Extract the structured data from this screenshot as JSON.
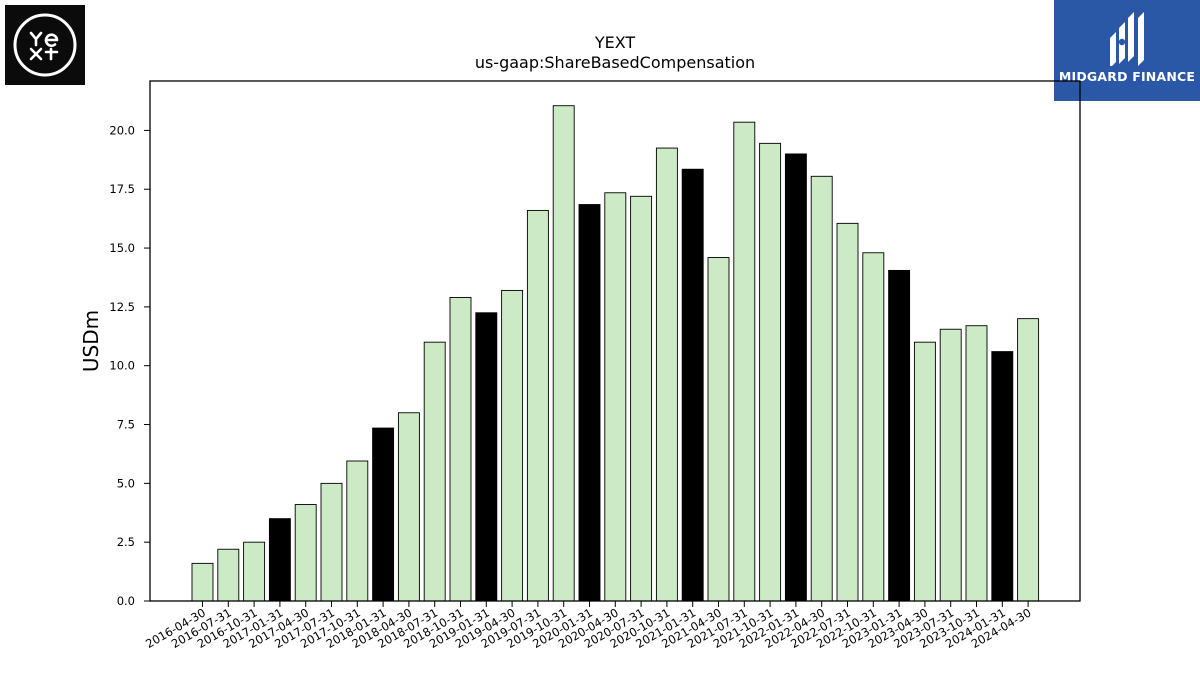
{
  "logos": {
    "left_icon": "yext-logo",
    "right_icon": "midgard-finance-logo",
    "right_text": "MIDGARD FINANCE"
  },
  "colors": {
    "bar_default": "#cdeac6",
    "bar_highlight": "#000000",
    "bar_edge": "#000000",
    "brand_blue": "#2b57a7"
  },
  "chart_data": {
    "type": "bar",
    "title": "YEXT",
    "subtitle": "us-gaap:ShareBasedCompensation",
    "xlabel": "",
    "ylabel": "USDm",
    "ylim": [
      0,
      22.1
    ],
    "yticks": [
      "0.0",
      "2.5",
      "5.0",
      "7.5",
      "10.0",
      "12.5",
      "15.0",
      "17.5",
      "20.0"
    ],
    "grid": false,
    "categories": [
      "2016-04-30",
      "2016-07-31",
      "2016-10-31",
      "2017-01-31",
      "2017-04-30",
      "2017-07-31",
      "2017-10-31",
      "2018-01-31",
      "2018-04-30",
      "2018-07-31",
      "2018-10-31",
      "2019-01-31",
      "2019-04-30",
      "2019-07-31",
      "2019-10-31",
      "2020-01-31",
      "2020-04-30",
      "2020-07-31",
      "2020-10-31",
      "2021-01-31",
      "2021-04-30",
      "2021-07-31",
      "2021-10-31",
      "2022-01-31",
      "2022-04-30",
      "2022-07-31",
      "2022-10-31",
      "2023-01-31",
      "2023-04-30",
      "2023-07-31",
      "2023-10-31",
      "2024-01-31",
      "2024-04-30"
    ],
    "values": [
      1.6,
      2.2,
      2.5,
      3.5,
      4.1,
      5.0,
      5.95,
      7.35,
      8.0,
      11.0,
      12.9,
      12.25,
      13.2,
      16.6,
      21.05,
      16.85,
      17.35,
      17.2,
      19.25,
      18.35,
      14.6,
      20.35,
      19.45,
      19.0,
      18.05,
      16.05,
      14.8,
      14.05,
      11.0,
      11.55,
      11.7,
      10.6,
      12.0
    ],
    "highlight": [
      false,
      false,
      false,
      true,
      false,
      false,
      false,
      true,
      false,
      false,
      false,
      true,
      false,
      false,
      false,
      true,
      false,
      false,
      false,
      true,
      false,
      false,
      false,
      true,
      false,
      false,
      false,
      true,
      false,
      false,
      false,
      true,
      false
    ]
  }
}
